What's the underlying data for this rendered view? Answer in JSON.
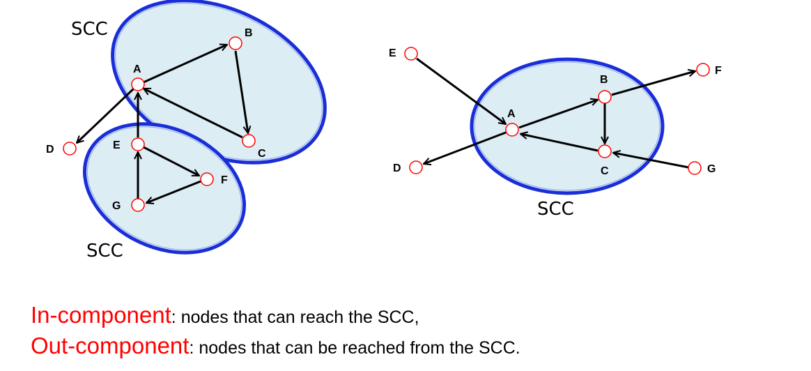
{
  "left_diagram": {
    "scc_label_top": "SCC",
    "scc_label_bottom": "SCC",
    "nodes": {
      "A": "A",
      "B": "B",
      "C": "C",
      "D": "D",
      "E": "E",
      "F": "F",
      "G": "G"
    }
  },
  "right_diagram": {
    "scc_label": "SCC",
    "nodes": {
      "A": "A",
      "B": "B",
      "C": "C",
      "D": "D",
      "E": "E",
      "F": "F",
      "G": "G"
    }
  },
  "captions": [
    {
      "term": "In-component",
      "desc": ": nodes that can reach the SCC,"
    },
    {
      "term": "Out-component",
      "desc": ": nodes that can be reached from the SCC."
    }
  ],
  "colors": {
    "scc_fill": "#dcedf3",
    "scc_border": "#1a2ed8",
    "node_stroke": "#ff0000",
    "edge": "#000000",
    "term": "#ff0000"
  }
}
